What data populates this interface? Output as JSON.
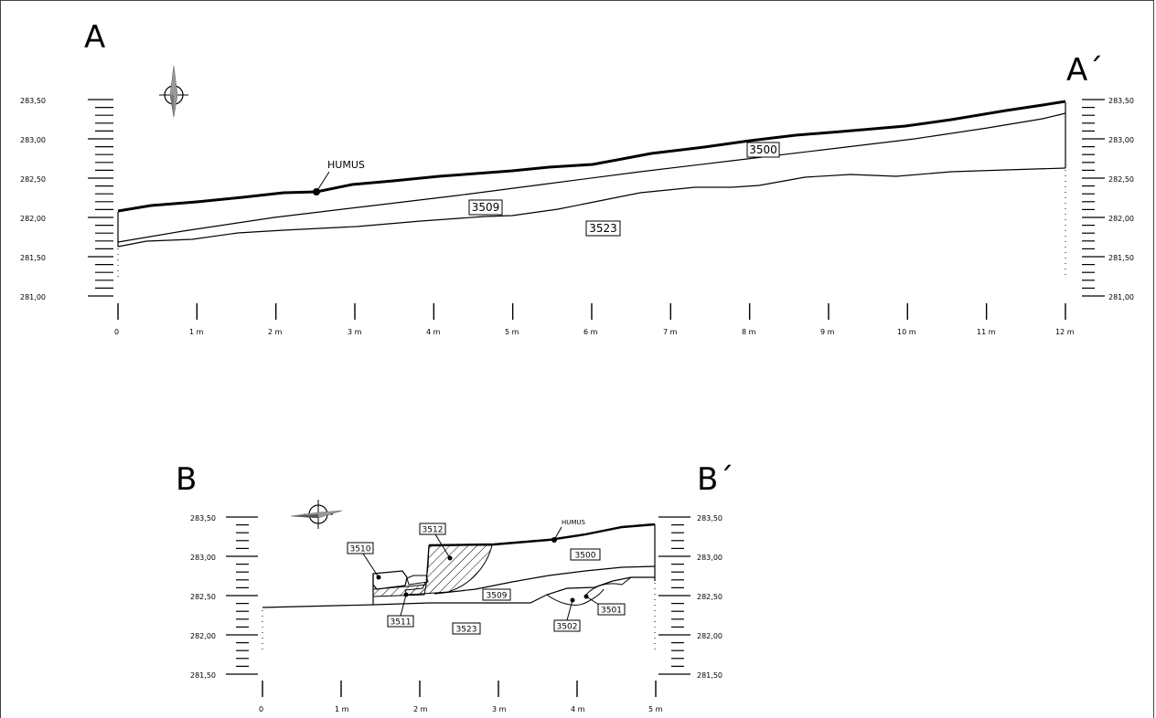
{
  "profiles": [
    {
      "start_label": "A",
      "end_label": "A´",
      "elevation_labels": [
        "283,50",
        "283,00",
        "282,50",
        "282,00",
        "281,50",
        "281,00"
      ],
      "distance_labels": [
        "0",
        "1 m",
        "2 m",
        "3 m",
        "4 m",
        "5 m",
        "6 m",
        "7 m",
        "8 m",
        "9 m",
        "10 m",
        "11 m",
        "12 m"
      ],
      "humus_label": "HUMUS",
      "layers": [
        "3500",
        "3509",
        "3523"
      ]
    },
    {
      "start_label": "B",
      "end_label": "B´",
      "elevation_labels": [
        "283,50",
        "283,00",
        "282,50",
        "282,00",
        "281,50"
      ],
      "distance_labels": [
        "0",
        "1 m",
        "2 m",
        "3 m",
        "4 m",
        "5 m"
      ],
      "humus_label": "HUMUS",
      "layers": [
        "3512",
        "3510",
        "3500",
        "3509",
        "3511",
        "3523",
        "3502",
        "3501"
      ]
    }
  ],
  "colors": {
    "ink": "#000000",
    "north_arrow_fill": "#999999"
  },
  "icons": [
    "north-arrow-icon"
  ]
}
